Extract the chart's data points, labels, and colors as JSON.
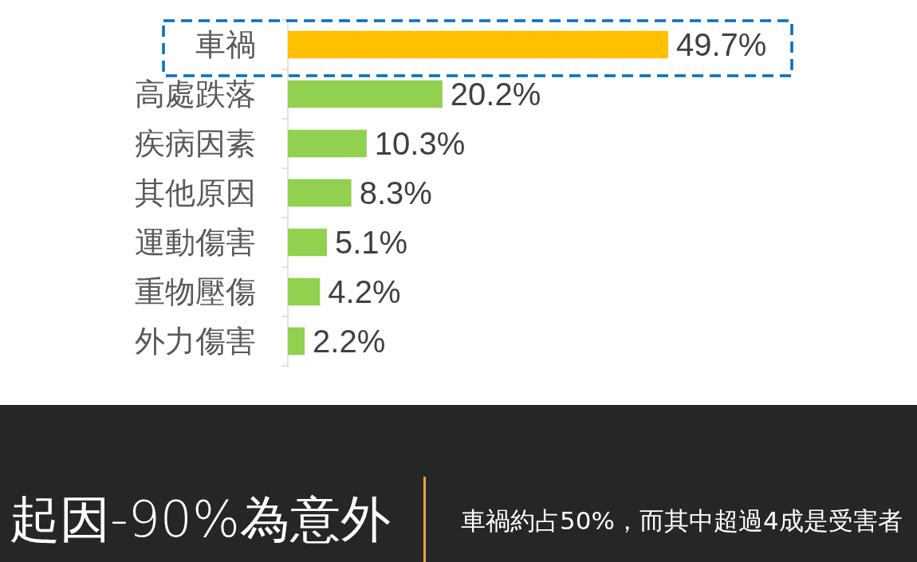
{
  "chart_data": {
    "type": "bar",
    "orientation": "horizontal",
    "title": "起因-90%為意外",
    "subtitle": "車禍約占50%，而其中超過4成是受害者",
    "categories": [
      "車禍",
      "高處跌落",
      "疾病因素",
      "其他原因",
      "運動傷害",
      "重物壓傷",
      "外力傷害"
    ],
    "values": [
      49.7,
      20.2,
      10.3,
      8.3,
      5.1,
      4.2,
      2.2
    ],
    "colors": [
      "#ffc000",
      "#92d050",
      "#92d050",
      "#92d050",
      "#92d050",
      "#92d050",
      "#92d050"
    ],
    "value_labels": [
      "49.7%",
      "20.2%",
      "10.3%",
      "8.3%",
      "5.1%",
      "4.2%",
      "2.2%"
    ],
    "tick_labels": "y"
  }
}
